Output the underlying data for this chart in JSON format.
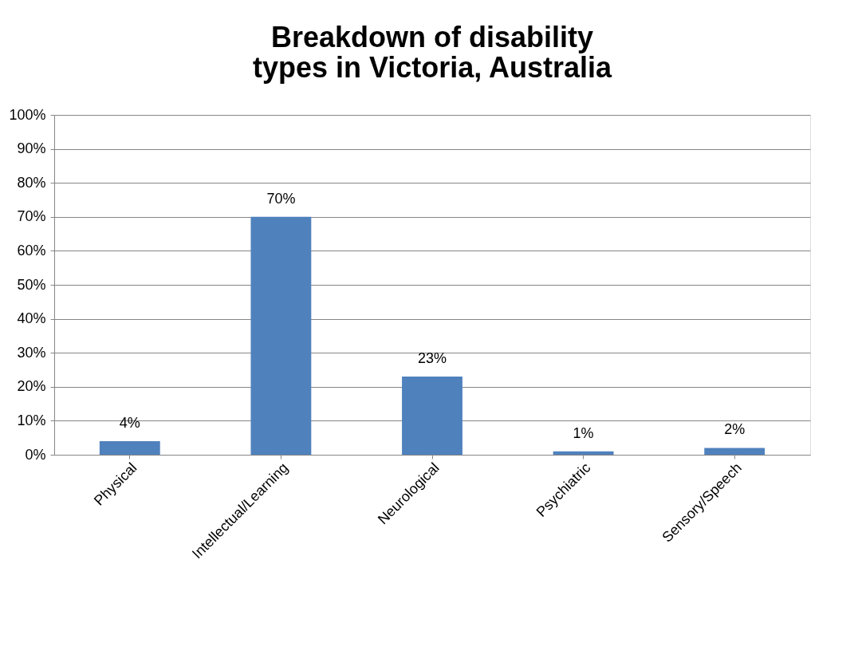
{
  "chart_data": {
    "type": "bar",
    "title": "Breakdown of disability types in Victoria, Australia",
    "categories": [
      "Physical",
      "Intellectual/Learning",
      "Neurological",
      "Psychiatric",
      "Sensory/Speech"
    ],
    "values": [
      4,
      70,
      23,
      1,
      2
    ],
    "value_labels": [
      "4%",
      "70%",
      "23%",
      "1%",
      "2%"
    ],
    "color": "#4f81bd",
    "ylim": [
      0,
      100
    ],
    "yticks": [
      {
        "value": 0,
        "label": "0%"
      },
      {
        "value": 10,
        "label": "10%"
      },
      {
        "value": 20,
        "label": "20%"
      },
      {
        "value": 30,
        "label": "30%"
      },
      {
        "value": 40,
        "label": "40%"
      },
      {
        "value": 50,
        "label": "50%"
      },
      {
        "value": 60,
        "label": "60%"
      },
      {
        "value": 70,
        "label": "70%"
      },
      {
        "value": 80,
        "label": "80%"
      },
      {
        "value": 90,
        "label": "90%"
      },
      {
        "value": 100,
        "label": "100%"
      }
    ],
    "grid": "y"
  }
}
